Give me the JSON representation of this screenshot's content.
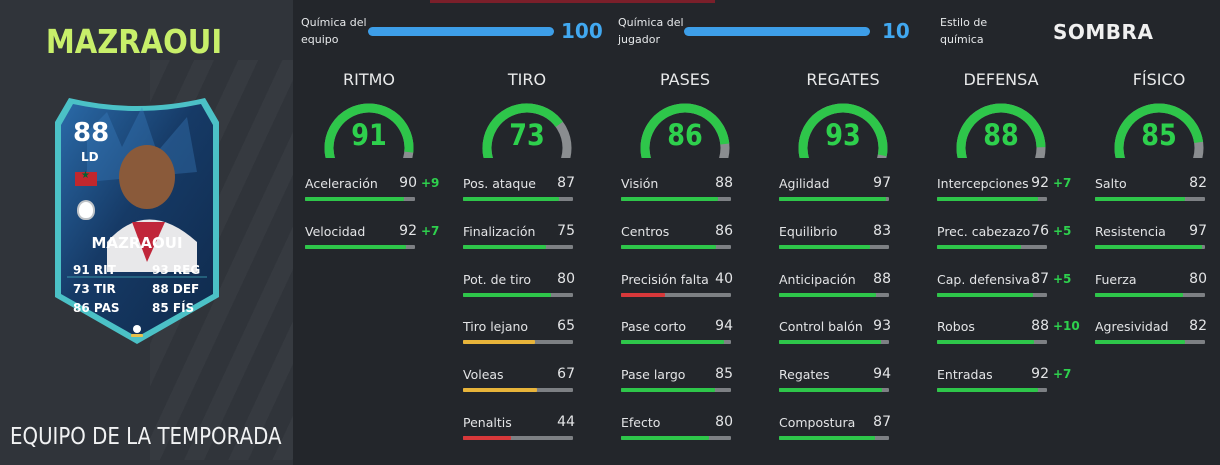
{
  "card": {
    "name_title": "MAZRAOUI",
    "overall": "88",
    "position": "LD",
    "name": "MAZRAOUI",
    "stats": [
      {
        "value": "91",
        "label": "RIT"
      },
      {
        "value": "73",
        "label": "TIR"
      },
      {
        "value": "86",
        "label": "PAS"
      },
      {
        "value": "93",
        "label": "REG"
      },
      {
        "value": "88",
        "label": "DEF"
      },
      {
        "value": "85",
        "label": "FÍS"
      }
    ],
    "team_label": "EQUIPO DE LA TEMPORADA",
    "colors": {
      "frame": "#4fd0d6",
      "body": "#1a3c62",
      "accent": "#c8ef6a"
    }
  },
  "chemistry": {
    "team_label_1": "Química del",
    "team_label_2": "equipo",
    "team_value": "100",
    "team_level": 100,
    "player_label_1": "Química del",
    "player_label_2": "jugador",
    "player_value": "10",
    "player_level": 100,
    "style_label_1": "Estilo de",
    "style_label_2": "química",
    "style_value": "SOMBRA"
  },
  "colors": {
    "high": "#2ec64a",
    "mid": "#e8b43a",
    "low": "#d8383a",
    "gauge_track": "#8a8d90",
    "chem_bar": "#3d9ee8"
  },
  "categories": [
    {
      "title": "RITMO",
      "value": "91",
      "stats": [
        {
          "name": "Aceleración",
          "value": "90",
          "bonus": "+9"
        },
        {
          "name": "Velocidad",
          "value": "92",
          "bonus": "+7"
        }
      ]
    },
    {
      "title": "TIRO",
      "value": "73",
      "stats": [
        {
          "name": "Pos. ataque",
          "value": "87",
          "bonus": ""
        },
        {
          "name": "Finalización",
          "value": "75",
          "bonus": ""
        },
        {
          "name": "Pot. de tiro",
          "value": "80",
          "bonus": ""
        },
        {
          "name": "Tiro lejano",
          "value": "65",
          "bonus": ""
        },
        {
          "name": "Voleas",
          "value": "67",
          "bonus": ""
        },
        {
          "name": "Penaltis",
          "value": "44",
          "bonus": ""
        }
      ]
    },
    {
      "title": "PASES",
      "value": "86",
      "stats": [
        {
          "name": "Visión",
          "value": "88",
          "bonus": ""
        },
        {
          "name": "Centros",
          "value": "86",
          "bonus": ""
        },
        {
          "name": "Precisión falta",
          "value": "40",
          "bonus": ""
        },
        {
          "name": "Pase corto",
          "value": "94",
          "bonus": ""
        },
        {
          "name": "Pase largo",
          "value": "85",
          "bonus": ""
        },
        {
          "name": "Efecto",
          "value": "80",
          "bonus": ""
        }
      ]
    },
    {
      "title": "REGATES",
      "value": "93",
      "stats": [
        {
          "name": "Agilidad",
          "value": "97",
          "bonus": ""
        },
        {
          "name": "Equilibrio",
          "value": "83",
          "bonus": ""
        },
        {
          "name": "Anticipación",
          "value": "88",
          "bonus": ""
        },
        {
          "name": "Control balón",
          "value": "93",
          "bonus": ""
        },
        {
          "name": "Regates",
          "value": "94",
          "bonus": ""
        },
        {
          "name": "Compostura",
          "value": "87",
          "bonus": ""
        }
      ]
    },
    {
      "title": "DEFENSA",
      "value": "88",
      "stats": [
        {
          "name": "Intercepciones",
          "value": "92",
          "bonus": "+7"
        },
        {
          "name": "Prec. cabezazo",
          "value": "76",
          "bonus": "+5"
        },
        {
          "name": "Cap. defensiva",
          "value": "87",
          "bonus": "+5"
        },
        {
          "name": "Robos",
          "value": "88",
          "bonus": "+10"
        },
        {
          "name": "Entradas",
          "value": "92",
          "bonus": "+7"
        }
      ]
    },
    {
      "title": "FÍSICO",
      "value": "85",
      "stats": [
        {
          "name": "Salto",
          "value": "82",
          "bonus": ""
        },
        {
          "name": "Resistencia",
          "value": "97",
          "bonus": ""
        },
        {
          "name": "Fuerza",
          "value": "80",
          "bonus": ""
        },
        {
          "name": "Agresividad",
          "value": "82",
          "bonus": ""
        }
      ]
    }
  ]
}
